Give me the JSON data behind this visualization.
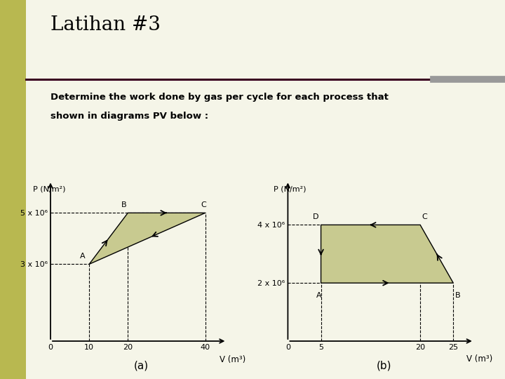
{
  "bg_color": "#f5f5e8",
  "left_strip_color": "#b8b850",
  "title": "Latihan #3",
  "subtitle_line1": "Determine the work done by gas per cycle for each process that",
  "subtitle_line2": "shown in diagrams PV below :",
  "divider_color": "#3a0020",
  "divider_right_color": "#999999",
  "chart_a_label": "(a)",
  "chart_b_label": "(b)",
  "a_xlabel": "V (m³)",
  "a_ylabel": "P (N/m²)",
  "a_xticks": [
    0,
    10,
    20,
    40
  ],
  "a_ytick_vals": [
    3000000,
    5000000
  ],
  "a_ytick_labels": [
    "3 x 10⁶",
    "5 x 10⁶"
  ],
  "a_xlim": [
    0,
    47
  ],
  "a_ylim": [
    0,
    6800000
  ],
  "a_A": [
    10,
    3000000
  ],
  "a_B": [
    20,
    5000000
  ],
  "a_C": [
    40,
    5000000
  ],
  "a_fill_color": "#c8ca90",
  "b_xlabel": "V (m³)",
  "b_ylabel": "P (N/m²)",
  "b_xticks": [
    0,
    5,
    20,
    25
  ],
  "b_ytick_vals": [
    2000000,
    4000000
  ],
  "b_ytick_labels": [
    "2 x 10⁶",
    "4 x 10⁶"
  ],
  "b_xlim": [
    0,
    29
  ],
  "b_ylim": [
    0,
    6000000
  ],
  "b_A": [
    5,
    2000000
  ],
  "b_B": [
    25,
    2000000
  ],
  "b_C": [
    20,
    4000000
  ],
  "b_D": [
    5,
    4000000
  ],
  "b_fill_color": "#c8ca90"
}
